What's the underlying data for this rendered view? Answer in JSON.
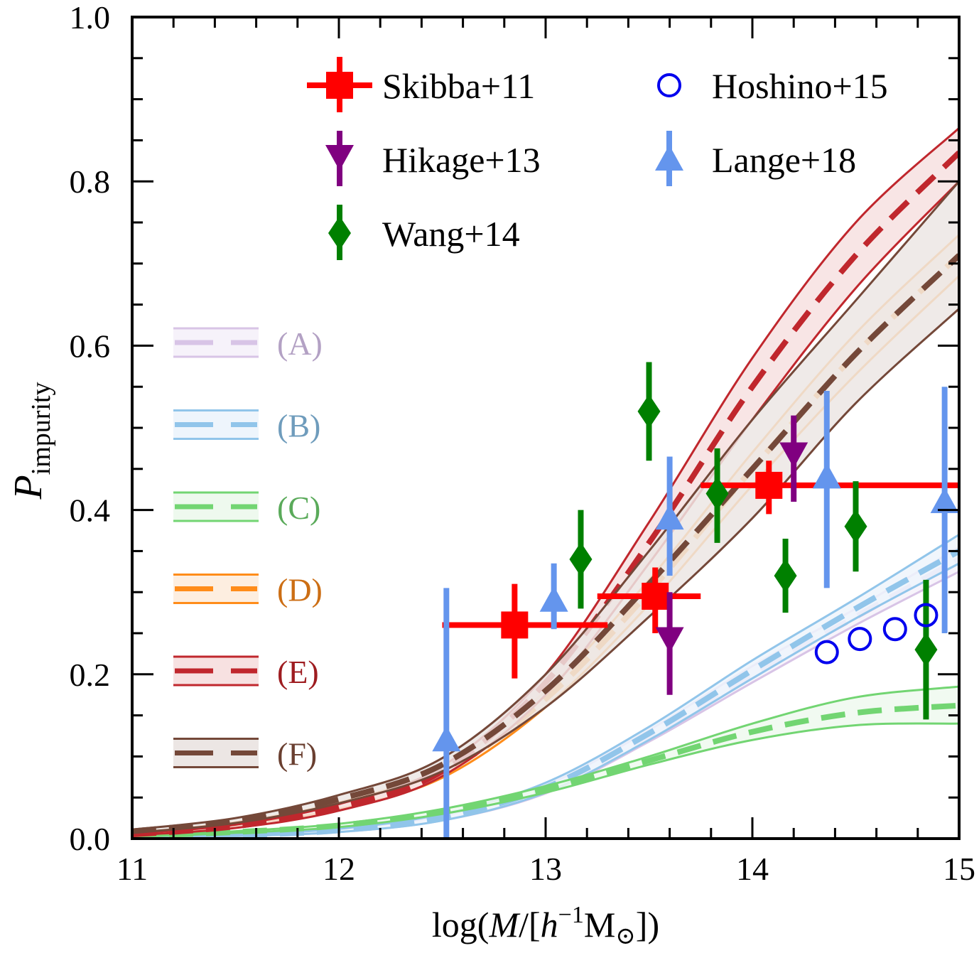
{
  "chart_data": {
    "type": "line",
    "title": "",
    "xlabel": "log(M/[h^-1 M_sun])",
    "xlabel_parts": {
      "pre": "log(",
      "M": "M",
      "slash": "/[",
      "h": "h",
      "sup": "−1",
      "Msun": "M",
      "sun": "⊙",
      "post": "])"
    },
    "ylabel": "P_impurity",
    "ylabel_parts": {
      "main": "P",
      "sub": "impurity"
    },
    "xlim": [
      11,
      15
    ],
    "ylim": [
      0,
      1.0
    ],
    "xticks": [
      11,
      12,
      13,
      14,
      15
    ],
    "xtick_labels": [
      "11",
      "12",
      "13",
      "14",
      "15"
    ],
    "yticks": [
      0.0,
      0.2,
      0.4,
      0.6,
      0.8,
      1.0
    ],
    "ytick_labels": [
      "0.0",
      "0.2",
      "0.4",
      "0.6",
      "0.8",
      "1.0"
    ],
    "grid": false,
    "models": [
      {
        "name": "(A)",
        "color": "#d8c4e6",
        "text_color": "#b3a1c4",
        "fill": "#f6f2fa",
        "x": [
          11,
          11.5,
          12,
          12.5,
          13,
          13.5,
          14,
          14.5,
          15
        ],
        "mid": [
          0.001,
          0.004,
          0.01,
          0.025,
          0.06,
          0.125,
          0.2,
          0.27,
          0.34
        ],
        "lo": [
          0.0,
          0.003,
          0.008,
          0.022,
          0.055,
          0.118,
          0.19,
          0.26,
          0.325
        ],
        "hi": [
          0.002,
          0.005,
          0.012,
          0.028,
          0.065,
          0.132,
          0.21,
          0.28,
          0.355
        ]
      },
      {
        "name": "(B)",
        "color": "#91c5ea",
        "text_color": "#6f9cbc",
        "fill": "#eef5fc",
        "x": [
          11,
          11.5,
          12,
          12.5,
          13,
          13.5,
          14,
          14.5,
          15
        ],
        "mid": [
          0.001,
          0.004,
          0.01,
          0.026,
          0.062,
          0.128,
          0.205,
          0.28,
          0.35
        ],
        "lo": [
          0.0,
          0.003,
          0.008,
          0.022,
          0.056,
          0.12,
          0.195,
          0.268,
          0.335
        ],
        "hi": [
          0.002,
          0.005,
          0.012,
          0.03,
          0.068,
          0.136,
          0.217,
          0.292,
          0.37
        ]
      },
      {
        "name": "(C)",
        "color": "#72d572",
        "text_color": "#5aaa5a",
        "fill": "#eef9ee",
        "x": [
          11,
          11.5,
          12,
          12.5,
          13,
          13.5,
          14,
          14.5,
          15
        ],
        "mid": [
          0.003,
          0.008,
          0.016,
          0.033,
          0.06,
          0.095,
          0.13,
          0.153,
          0.162
        ],
        "lo": [
          0.002,
          0.007,
          0.014,
          0.03,
          0.056,
          0.09,
          0.12,
          0.138,
          0.14
        ],
        "hi": [
          0.004,
          0.009,
          0.018,
          0.036,
          0.064,
          0.1,
          0.14,
          0.172,
          0.185
        ]
      },
      {
        "name": "(D)",
        "color": "#ff8c1a",
        "text_color": "#cc6e14",
        "fill": "#fdeee0",
        "x": [
          11,
          11.5,
          12,
          12.5,
          13,
          13.5,
          14,
          14.5,
          15
        ],
        "mid": [
          0.006,
          0.018,
          0.04,
          0.08,
          0.17,
          0.3,
          0.45,
          0.59,
          0.71
        ],
        "lo": [
          0.005,
          0.016,
          0.036,
          0.074,
          0.16,
          0.285,
          0.43,
          0.565,
          0.685
        ],
        "hi": [
          0.007,
          0.02,
          0.044,
          0.086,
          0.18,
          0.315,
          0.47,
          0.615,
          0.735
        ]
      },
      {
        "name": "(E)",
        "color": "#c0272d",
        "text_color": "#9e1c20",
        "fill": "#f7e1e1",
        "x": [
          11,
          11.5,
          12,
          12.5,
          13,
          13.5,
          14,
          14.5,
          15
        ],
        "mid": [
          0.005,
          0.015,
          0.038,
          0.082,
          0.19,
          0.36,
          0.55,
          0.71,
          0.835
        ],
        "lo": [
          0.004,
          0.013,
          0.034,
          0.076,
          0.175,
          0.335,
          0.51,
          0.67,
          0.8
        ],
        "hi": [
          0.006,
          0.017,
          0.042,
          0.088,
          0.2,
          0.385,
          0.585,
          0.75,
          0.865
        ]
      },
      {
        "name": "(F)",
        "color": "#744839",
        "text_color": "#6a3f30",
        "fill": "#ece6e4",
        "x": [
          11,
          11.5,
          12,
          12.5,
          13,
          13.5,
          14,
          14.5,
          15
        ],
        "mid": [
          0.009,
          0.022,
          0.048,
          0.09,
          0.18,
          0.31,
          0.45,
          0.59,
          0.71
        ],
        "lo": [
          0.007,
          0.019,
          0.043,
          0.082,
          0.16,
          0.27,
          0.39,
          0.53,
          0.645
        ],
        "hi": [
          0.011,
          0.025,
          0.053,
          0.098,
          0.2,
          0.35,
          0.51,
          0.655,
          0.8
        ]
      }
    ],
    "observations": [
      {
        "name": "Skibba+11",
        "marker": "square",
        "color": "#ff0000",
        "points": [
          {
            "x": 12.85,
            "y": 0.26,
            "xlo": 12.5,
            "xhi": 13.3,
            "ylo": 0.195,
            "yhi": 0.31
          },
          {
            "x": 13.53,
            "y": 0.295,
            "xlo": 13.25,
            "xhi": 13.75,
            "ylo": 0.25,
            "yhi": 0.33
          },
          {
            "x": 14.08,
            "y": 0.43,
            "xlo": 13.75,
            "xhi": 15.0,
            "ylo": 0.395,
            "yhi": 0.46
          }
        ]
      },
      {
        "name": "Hikage+13",
        "marker": "triangle-down",
        "color": "#800080",
        "points": [
          {
            "x": 13.6,
            "y": 0.24,
            "ylo": 0.175,
            "yhi": 0.3
          },
          {
            "x": 14.2,
            "y": 0.465,
            "ylo": 0.41,
            "yhi": 0.515
          }
        ]
      },
      {
        "name": "Wang+14",
        "marker": "diamond",
        "color": "#008000",
        "points": [
          {
            "x": 13.17,
            "y": 0.34,
            "ylo": 0.28,
            "yhi": 0.4
          },
          {
            "x": 13.5,
            "y": 0.52,
            "ylo": 0.46,
            "yhi": 0.58
          },
          {
            "x": 13.83,
            "y": 0.42,
            "ylo": 0.36,
            "yhi": 0.475
          },
          {
            "x": 14.16,
            "y": 0.32,
            "ylo": 0.275,
            "yhi": 0.365
          },
          {
            "x": 14.5,
            "y": 0.38,
            "ylo": 0.325,
            "yhi": 0.435
          },
          {
            "x": 14.84,
            "y": 0.23,
            "ylo": 0.145,
            "yhi": 0.315
          }
        ]
      },
      {
        "name": "Hoshino+15",
        "marker": "circle-open",
        "color": "#0000ee",
        "points": [
          {
            "x": 14.36,
            "y": 0.227
          },
          {
            "x": 14.52,
            "y": 0.243
          },
          {
            "x": 14.69,
            "y": 0.255
          },
          {
            "x": 14.84,
            "y": 0.272
          }
        ]
      },
      {
        "name": "Lange+18",
        "marker": "triangle-up",
        "color": "#6495ed",
        "points": [
          {
            "x": 12.52,
            "y": 0.12,
            "ylo": 0.0,
            "yhi": 0.305
          },
          {
            "x": 13.04,
            "y": 0.29,
            "ylo": 0.255,
            "yhi": 0.335
          },
          {
            "x": 13.6,
            "y": 0.39,
            "ylo": 0.32,
            "yhi": 0.465
          },
          {
            "x": 14.36,
            "y": 0.44,
            "ylo": 0.305,
            "yhi": 0.545
          },
          {
            "x": 14.93,
            "y": 0.41,
            "ylo": 0.25,
            "yhi": 0.55
          }
        ]
      }
    ],
    "legend_observations": {
      "placement": "top-center",
      "columns": [
        [
          "Skibba+11",
          "Hikage+13",
          "Wang+14"
        ],
        [
          "Hoshino+15",
          "Lange+18"
        ]
      ]
    },
    "legend_models": {
      "placement": "left",
      "entries": [
        "(A)",
        "(B)",
        "(C)",
        "(D)",
        "(E)",
        "(F)"
      ]
    }
  }
}
